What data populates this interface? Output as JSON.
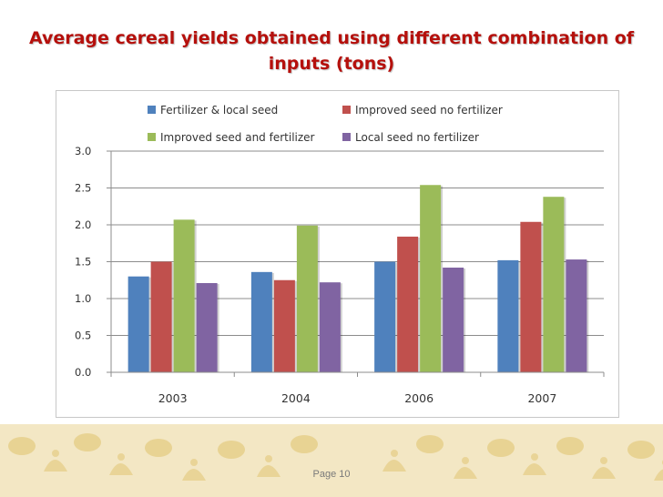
{
  "slide": {
    "title": "Average cereal yields obtained using different combination of inputs (tons)",
    "page_label": "Page 10"
  },
  "colors": {
    "title": "#b5100c",
    "footer_band": "#f3e7c4",
    "footer_figures": "#e2c87a"
  },
  "chart_data": {
    "type": "bar",
    "title": "",
    "xlabel": "",
    "ylabel": "",
    "categories": [
      "2003",
      "2004",
      "2006",
      "2007"
    ],
    "series": [
      {
        "name": "Fertilizer & local seed",
        "color": "#4f81bd",
        "values": [
          1.3,
          1.36,
          1.5,
          1.52
        ]
      },
      {
        "name": "Improved seed no fertilizer",
        "color": "#c0504d",
        "values": [
          1.5,
          1.25,
          1.84,
          2.04
        ]
      },
      {
        "name": "Improved seed and fertilizer",
        "color": "#9bbb59",
        "values": [
          2.07,
          1.99,
          2.54,
          2.38
        ]
      },
      {
        "name": "Local seed no fertilizer",
        "color": "#8064a2",
        "values": [
          1.21,
          1.22,
          1.42,
          1.53
        ]
      }
    ],
    "ylim": [
      0,
      3.0
    ],
    "yticks": [
      "0.0",
      "0.5",
      "1.0",
      "1.5",
      "2.0",
      "2.5",
      "3.0"
    ],
    "grid": true,
    "legend_position": "top"
  }
}
